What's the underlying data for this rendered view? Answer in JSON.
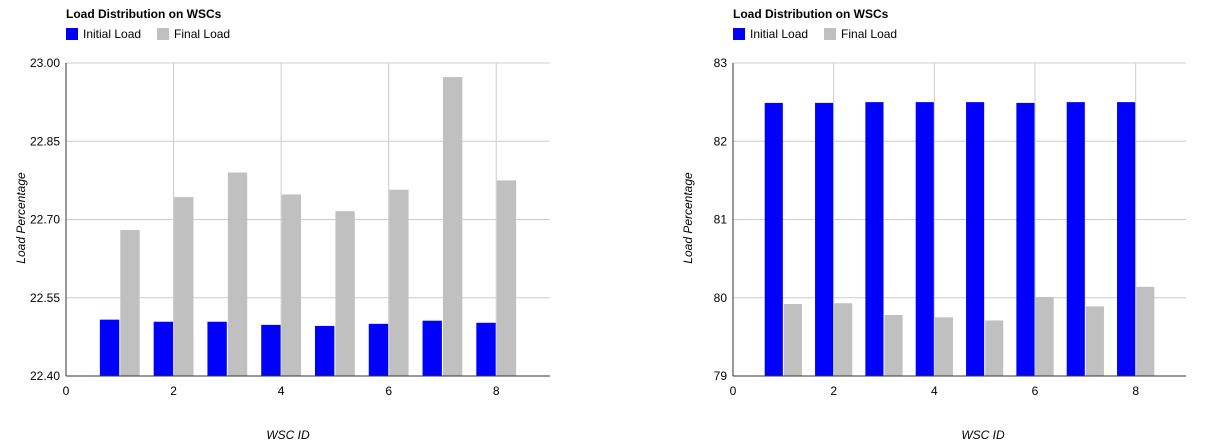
{
  "chart_data": [
    {
      "type": "bar",
      "title": "Load Distribution on WSCs",
      "xlabel": "WSC ID",
      "ylabel": "Load Percentage",
      "x": [
        1,
        2,
        3,
        4,
        5,
        6,
        7,
        8
      ],
      "xlim": [
        0,
        9
      ],
      "xticks": [
        "0",
        "2",
        "4",
        "6",
        "8"
      ],
      "xtick_values": [
        0,
        2,
        4,
        6,
        8
      ],
      "ylim": [
        22.4,
        23.0
      ],
      "yticks": [
        "22.40",
        "22.55",
        "22.70",
        "22.85",
        "23.00"
      ],
      "ytick_values": [
        22.4,
        22.55,
        22.7,
        22.85,
        23.0
      ],
      "grid": true,
      "legend_position": "top-left",
      "series": [
        {
          "name": "Initial Load",
          "color": "#0000ff",
          "values": [
            22.508,
            22.504,
            22.504,
            22.498,
            22.496,
            22.5,
            22.506,
            22.502
          ]
        },
        {
          "name": "Final Load",
          "color": "#c0c0c0",
          "values": [
            22.68,
            22.743,
            22.79,
            22.748,
            22.716,
            22.757,
            22.973,
            22.775
          ]
        }
      ]
    },
    {
      "type": "bar",
      "title": "Load Distribution on WSCs",
      "xlabel": "WSC ID",
      "ylabel": "Load Percentage",
      "x": [
        1,
        2,
        3,
        4,
        5,
        6,
        7,
        8
      ],
      "xlim": [
        0,
        9
      ],
      "xticks": [
        "0",
        "2",
        "4",
        "6",
        "8"
      ],
      "xtick_values": [
        0,
        2,
        4,
        6,
        8
      ],
      "ylim": [
        79,
        83
      ],
      "yticks": [
        "79",
        "80",
        "81",
        "82",
        "83"
      ],
      "ytick_values": [
        79,
        80,
        81,
        82,
        83
      ],
      "grid": true,
      "legend_position": "top-left",
      "series": [
        {
          "name": "Initial Load",
          "color": "#0000ff",
          "values": [
            82.49,
            82.49,
            82.5,
            82.5,
            82.5,
            82.49,
            82.5,
            82.5
          ]
        },
        {
          "name": "Final Load",
          "color": "#c0c0c0",
          "values": [
            79.92,
            79.93,
            79.78,
            79.75,
            79.71,
            80.01,
            79.89,
            80.14
          ]
        }
      ]
    }
  ]
}
